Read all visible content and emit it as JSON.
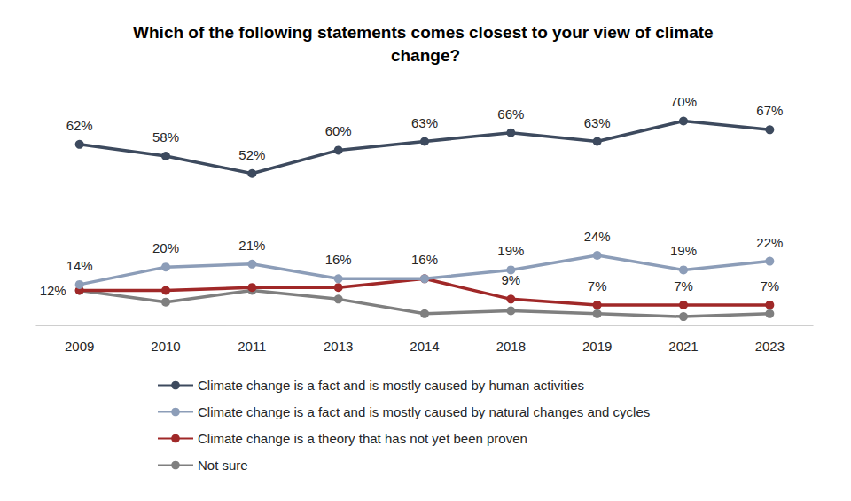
{
  "chart_data": {
    "type": "line",
    "title": "Which of the following statements comes closest to your view of climate change?",
    "categories": [
      "2009",
      "2010",
      "2011",
      "2013",
      "2014",
      "2018",
      "2019",
      "2021",
      "2023"
    ],
    "ylim": [
      0,
      75
    ],
    "grid": false,
    "tick_labels": "x",
    "marker": "circle",
    "legend": "bottom",
    "series": [
      {
        "name": "Climate change is a fact and is mostly caused by human activities",
        "color": "#3d4a5e",
        "data_labels": true,
        "values": [
          62,
          58,
          52,
          60,
          63,
          66,
          63,
          70,
          67
        ],
        "value_labels": [
          "62%",
          "58%",
          "52%",
          "60%",
          "63%",
          "66%",
          "63%",
          "70%",
          "67%"
        ]
      },
      {
        "name": "Climate change is a fact and is mostly caused by natural changes and cycles",
        "color": "#8c9db8",
        "data_labels": true,
        "values": [
          14,
          20,
          21,
          16,
          16,
          19,
          24,
          19,
          22
        ],
        "value_labels": [
          "14%",
          "20%",
          "21%",
          "16%",
          "16%",
          "19%",
          "24%",
          "19%",
          "22%"
        ]
      },
      {
        "name": "Climate change is a theory that has not yet been proven",
        "color": "#a02828",
        "data_labels": true,
        "values": [
          12,
          12,
          13,
          13,
          16,
          9,
          7,
          7,
          7
        ],
        "value_labels": [
          "12%",
          null,
          null,
          null,
          null,
          "9%",
          "7%",
          "7%",
          "7%"
        ]
      },
      {
        "name": "Not sure",
        "color": "#7f7f7f",
        "data_labels": false,
        "values": [
          12,
          8,
          12,
          9,
          4,
          5,
          4,
          3,
          4
        ]
      }
    ]
  }
}
